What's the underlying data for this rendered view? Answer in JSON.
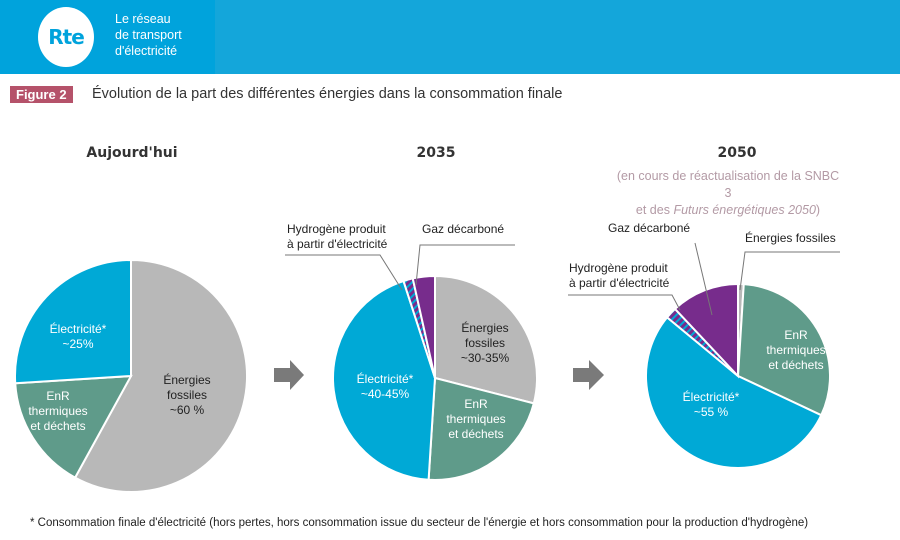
{
  "header": {
    "logo": "Rte",
    "tagline": [
      "Le réseau",
      "de transport",
      "d'électricité"
    ]
  },
  "figure": {
    "tag": "Figure 2",
    "title": "Évolution de la part des différentes énergies dans la consommation finale"
  },
  "colors": {
    "electricite": "#00a9d6",
    "fossiles": "#b8b8b8",
    "enr": "#5f9b8a",
    "gaz": "#772c8c",
    "hydrogene": "#772c8c",
    "arrow": "#7a7a7a"
  },
  "chart_data": [
    {
      "type": "pie",
      "title": "Aujourd'hui",
      "slices": [
        {
          "name": "Énergies fossiles",
          "value": 58,
          "label": "~60 %"
        },
        {
          "name": "EnR thermiques et déchets",
          "value": 16
        },
        {
          "name": "Électricité*",
          "value": 26,
          "label": "~25%"
        }
      ]
    },
    {
      "type": "pie",
      "title": "2035",
      "slices": [
        {
          "name": "Énergies fossiles",
          "value": 29,
          "label": "~30-35%"
        },
        {
          "name": "EnR thermiques et déchets",
          "value": 22
        },
        {
          "name": "Électricité*",
          "value": 44,
          "label": "~40-45%"
        },
        {
          "name": "Hydrogène produit à partir d'électricité",
          "value": 1.5
        },
        {
          "name": "Gaz décarboné",
          "value": 3.5
        }
      ]
    },
    {
      "type": "pie",
      "title": "2050",
      "subtitle": [
        "(en cours de réactualisation de la SNBC 3",
        "et des ",
        "Futurs énergétiques 2050",
        ")"
      ],
      "slices": [
        {
          "name": "Énergies fossiles",
          "value": 1
        },
        {
          "name": "EnR thermiques et déchets",
          "value": 31
        },
        {
          "name": "Électricité*",
          "value": 54,
          "label": "~55 %"
        },
        {
          "name": "Hydrogène produit à partir d'électricité",
          "value": 2
        },
        {
          "name": "Gaz décarboné",
          "value": 12
        }
      ]
    }
  ],
  "labels": {
    "elec": "Électricité*",
    "fossiles": "Énergies",
    "fossiles2": "fossiles",
    "enr": [
      "EnR",
      "thermiques",
      "et déchets"
    ],
    "h2": [
      "Hydrogène produit",
      "à partir d'électricité"
    ],
    "gaz": "Gaz décarboné",
    "fossiles_full": "Énergies fossiles"
  },
  "footnote": "* Consommation finale d'électricité (hors pertes, hors consommation issue du secteur de l'énergie et hors consommation pour la production d'hydrogène)"
}
